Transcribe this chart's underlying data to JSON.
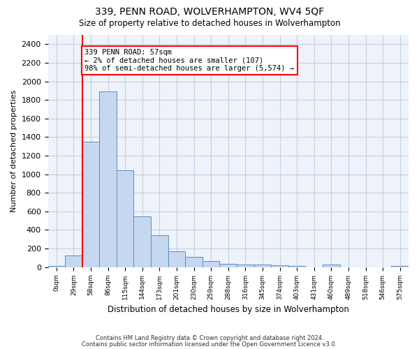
{
  "title": "339, PENN ROAD, WOLVERHAMPTON, WV4 5QF",
  "subtitle": "Size of property relative to detached houses in Wolverhampton",
  "xlabel": "Distribution of detached houses by size in Wolverhampton",
  "ylabel": "Number of detached properties",
  "bin_labels": [
    "0sqm",
    "29sqm",
    "58sqm",
    "86sqm",
    "115sqm",
    "144sqm",
    "173sqm",
    "201sqm",
    "230sqm",
    "259sqm",
    "288sqm",
    "316sqm",
    "345sqm",
    "374sqm",
    "403sqm",
    "431sqm",
    "460sqm",
    "489sqm",
    "518sqm",
    "546sqm",
    "575sqm"
  ],
  "bar_values": [
    15,
    125,
    1350,
    1890,
    1045,
    545,
    340,
    170,
    108,
    65,
    38,
    30,
    28,
    20,
    15,
    0,
    25,
    0,
    0,
    0,
    15
  ],
  "bar_color": "#c5d8f0",
  "bar_edge_color": "#5a8fc0",
  "red_line_bin": 2,
  "annotation_text": "339 PENN ROAD: 57sqm\n← 2% of detached houses are smaller (107)\n98% of semi-detached houses are larger (5,574) →",
  "ylim": [
    0,
    2500
  ],
  "yticks": [
    0,
    200,
    400,
    600,
    800,
    1000,
    1200,
    1400,
    1600,
    1800,
    2000,
    2200,
    2400
  ],
  "footer_line1": "Contains HM Land Registry data © Crown copyright and database right 2024.",
  "footer_line2": "Contains public sector information licensed under the Open Government Licence v3.0.",
  "background_color": "#ffffff",
  "plot_bg_color": "#edf2fb",
  "grid_color": "#c8d0e0"
}
